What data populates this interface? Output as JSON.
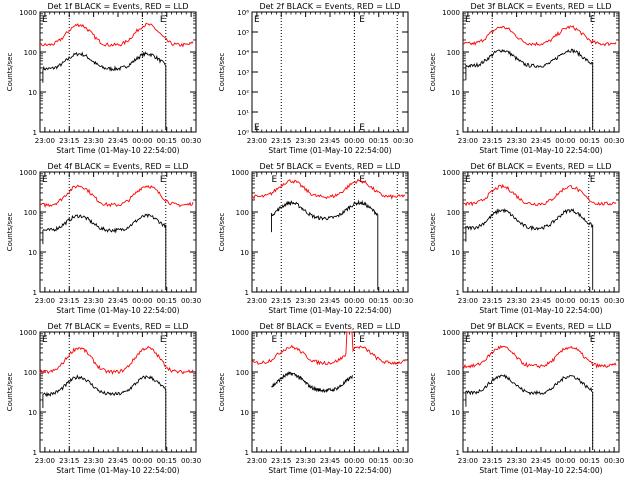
{
  "chart_data": [
    {
      "type": "line",
      "title": "Det 1f BLACK = Events, RED = LLD",
      "ylabel": "Counts/sec",
      "xlabel": "Start Time (01-May-10 22:54:00)",
      "yscale": "log",
      "ylim": [
        1,
        1000
      ],
      "yticks": [
        "1",
        "10",
        "100",
        "1000"
      ],
      "xticks": [
        "23:00",
        "23:15",
        "23:30",
        "23:45",
        "00:00",
        "00:15",
        "00:30"
      ],
      "xrange": [
        22.95,
        24.55
      ],
      "vlines": [
        23.25,
        24.24,
        24.0
      ],
      "letters": [
        {
          "label": "E",
          "x": 22.97
        },
        {
          "label": "E",
          "x": 24.18
        }
      ],
      "series": [
        {
          "name": "Events",
          "color": "#000000",
          "t0": 22.98,
          "t1": 24.24,
          "shape": "orbit",
          "peak": 90,
          "min": 38,
          "drop": true
        },
        {
          "name": "LLD",
          "color": "#ff0000",
          "t0": 22.95,
          "t1": 24.52,
          "shape": "orbit",
          "peak": 480,
          "min": 150
        }
      ]
    },
    {
      "type": "line",
      "title": "Det 2f BLACK = Events, RED = LLD",
      "ylabel": "Counts/sec",
      "xlabel": "Start Time (01-May-10 22:54:00)",
      "yscale": "log",
      "ylim": [
        1,
        1000000
      ],
      "yticks": [
        "10⁰",
        "10¹",
        "10²",
        "10³",
        "10⁴",
        "10⁵",
        "10⁶"
      ],
      "xticks": [
        "23:00",
        "23:15",
        "23:30",
        "23:45",
        "00:00",
        "00:15",
        "00:30"
      ],
      "xrange": [
        22.95,
        24.55
      ],
      "vlines": [
        23.25,
        24.0,
        24.44
      ],
      "letters": [
        {
          "label": "E",
          "x": 22.97
        },
        {
          "label": "E",
          "x": 24.05
        }
      ],
      "series": []
    },
    {
      "type": "line",
      "title": "Det 3f BLACK = Events, RED = LLD",
      "ylabel": "Counts/sec",
      "xlabel": "Start Time (01-May-10 22:54:00)",
      "yscale": "log",
      "ylim": [
        1,
        1000
      ],
      "yticks": [
        "1",
        "10",
        "100",
        "1000"
      ],
      "xticks": [
        "23:00",
        "23:15",
        "23:30",
        "23:45",
        "00:00",
        "00:15",
        "00:30"
      ],
      "xrange": [
        22.95,
        24.55
      ],
      "vlines": [
        23.25,
        24.28
      ],
      "letters": [
        {
          "label": "E",
          "x": 22.97
        },
        {
          "label": "E",
          "x": 24.25
        }
      ],
      "series": [
        {
          "name": "Events",
          "color": "#000000",
          "t0": 22.98,
          "t1": 24.28,
          "shape": "orbit",
          "peak": 110,
          "min": 45,
          "drop": true
        },
        {
          "name": "LLD",
          "color": "#ff0000",
          "t0": 22.95,
          "t1": 24.52,
          "shape": "orbit",
          "peak": 420,
          "min": 160
        }
      ]
    },
    {
      "type": "line",
      "title": "Det 4f BLACK = Events, RED = LLD",
      "ylabel": "Counts/sec",
      "xlabel": "Start Time (01-May-10 22:54:00)",
      "yscale": "log",
      "ylim": [
        1,
        1000
      ],
      "yticks": [
        "1",
        "10",
        "100",
        "1000"
      ],
      "xticks": [
        "23:00",
        "23:15",
        "23:30",
        "23:45",
        "00:00",
        "00:15",
        "00:30"
      ],
      "xrange": [
        22.95,
        24.55
      ],
      "vlines": [
        23.25,
        24.24
      ],
      "letters": [
        {
          "label": "E",
          "x": 22.97
        },
        {
          "label": "E",
          "x": 24.18
        }
      ],
      "series": [
        {
          "name": "Events",
          "color": "#000000",
          "t0": 22.98,
          "t1": 24.24,
          "shape": "orbit",
          "peak": 80,
          "min": 35,
          "drop": true
        },
        {
          "name": "LLD",
          "color": "#ff0000",
          "t0": 22.95,
          "t1": 24.52,
          "shape": "orbit",
          "peak": 450,
          "min": 150
        }
      ]
    },
    {
      "type": "line",
      "title": "Det 5f BLACK = Events, RED = LLD",
      "ylabel": "Counts/sec",
      "xlabel": "Start Time (01-May-10 22:54:00)",
      "yscale": "log",
      "ylim": [
        1,
        1000
      ],
      "yticks": [
        "1",
        "10",
        "100",
        "1000"
      ],
      "xticks": [
        "23:00",
        "23:15",
        "23:30",
        "23:45",
        "00:00",
        "00:15",
        "00:30"
      ],
      "xrange": [
        22.95,
        24.55
      ],
      "vlines": [
        23.25,
        24.0,
        24.44
      ],
      "letters": [
        {
          "label": "E",
          "x": 23.15
        },
        {
          "label": "E",
          "x": 24.05
        }
      ],
      "series": [
        {
          "name": "Events",
          "color": "#000000",
          "t0": 23.15,
          "t1": 24.24,
          "shape": "orbit",
          "peak": 170,
          "min": 70,
          "drop": true
        },
        {
          "name": "LLD",
          "color": "#ff0000",
          "t0": 22.95,
          "t1": 24.52,
          "shape": "orbit",
          "peak": 600,
          "min": 240
        }
      ]
    },
    {
      "type": "line",
      "title": "Det 6f BLACK = Events, RED = LLD",
      "ylabel": "Counts/sec",
      "xlabel": "Start Time (01-May-10 22:54:00)",
      "yscale": "log",
      "ylim": [
        1,
        1000
      ],
      "yticks": [
        "1",
        "10",
        "100",
        "1000"
      ],
      "xticks": [
        "23:00",
        "23:15",
        "23:30",
        "23:45",
        "00:00",
        "00:15",
        "00:30"
      ],
      "xrange": [
        22.95,
        24.55
      ],
      "vlines": [
        23.25,
        24.24
      ],
      "letters": [
        {
          "label": "E",
          "x": 22.97
        },
        {
          "label": "E",
          "x": 24.25
        }
      ],
      "series": [
        {
          "name": "Events",
          "color": "#000000",
          "t0": 22.98,
          "t1": 24.28,
          "shape": "orbit",
          "peak": 110,
          "min": 40,
          "drop": true
        },
        {
          "name": "LLD",
          "color": "#ff0000",
          "t0": 22.95,
          "t1": 24.52,
          "shape": "orbit",
          "peak": 430,
          "min": 160
        }
      ]
    },
    {
      "type": "line",
      "title": "Det 7f BLACK = Events, RED = LLD",
      "ylabel": "Counts/sec",
      "xlabel": "Start Time (01-May-10 22:54:00)",
      "yscale": "log",
      "ylim": [
        1,
        1000
      ],
      "yticks": [
        "1",
        "10",
        "100",
        "1000"
      ],
      "xticks": [
        "23:00",
        "23:15",
        "23:30",
        "23:45",
        "00:00",
        "00:15",
        "00:30"
      ],
      "xrange": [
        22.95,
        24.55
      ],
      "vlines": [
        23.25,
        24.24
      ],
      "letters": [
        {
          "label": "E",
          "x": 22.97
        },
        {
          "label": "E",
          "x": 24.18
        }
      ],
      "series": [
        {
          "name": "Events",
          "color": "#000000",
          "t0": 22.98,
          "t1": 24.24,
          "shape": "orbit",
          "peak": 75,
          "min": 28,
          "drop": true
        },
        {
          "name": "LLD",
          "color": "#ff0000",
          "t0": 22.95,
          "t1": 24.52,
          "shape": "orbit",
          "peak": 400,
          "min": 100
        }
      ]
    },
    {
      "type": "line",
      "title": "Det 8f BLACK = Events, RED = LLD",
      "ylabel": "Counts/sec",
      "xlabel": "Start Time (01-May-10 22:54:00)",
      "yscale": "log",
      "ylim": [
        1,
        1000
      ],
      "yticks": [
        "1",
        "10",
        "100",
        "1000"
      ],
      "xticks": [
        "23:00",
        "23:15",
        "23:30",
        "23:45",
        "00:00",
        "00:15",
        "00:30"
      ],
      "xrange": [
        22.95,
        24.55
      ],
      "vlines": [
        23.25,
        24.0,
        24.44
      ],
      "letters": [
        {
          "label": "E",
          "x": 23.15
        },
        {
          "label": "E",
          "x": 24.05
        }
      ],
      "series": [
        {
          "name": "Events",
          "color": "#000000",
          "t0": 23.15,
          "t1": 23.98,
          "shape": "orbit",
          "peak": 90,
          "min": 35,
          "drop": false
        },
        {
          "name": "LLD",
          "color": "#ff0000",
          "t0": 22.95,
          "t1": 24.52,
          "shape": "orbit",
          "peak": 420,
          "min": 170,
          "spike": [
            23.92,
            23.98
          ]
        }
      ]
    },
    {
      "type": "line",
      "title": "Det 9f BLACK = Events, RED = LLD",
      "ylabel": "Counts/sec",
      "xlabel": "Start Time (01-May-10 22:54:00)",
      "yscale": "log",
      "ylim": [
        1,
        1000
      ],
      "yticks": [
        "1",
        "10",
        "100",
        "1000"
      ],
      "xticks": [
        "23:00",
        "23:15",
        "23:30",
        "23:45",
        "00:00",
        "00:15",
        "00:30"
      ],
      "xrange": [
        22.95,
        24.55
      ],
      "vlines": [
        23.25,
        24.28
      ],
      "letters": [
        {
          "label": "E",
          "x": 22.97
        },
        {
          "label": "E",
          "x": 24.25
        }
      ],
      "series": [
        {
          "name": "Events",
          "color": "#000000",
          "t0": 22.98,
          "t1": 24.28,
          "shape": "orbit",
          "peak": 80,
          "min": 30,
          "drop": true
        },
        {
          "name": "LLD",
          "color": "#ff0000",
          "t0": 22.95,
          "t1": 24.52,
          "shape": "orbit",
          "peak": 420,
          "min": 140
        }
      ]
    }
  ]
}
